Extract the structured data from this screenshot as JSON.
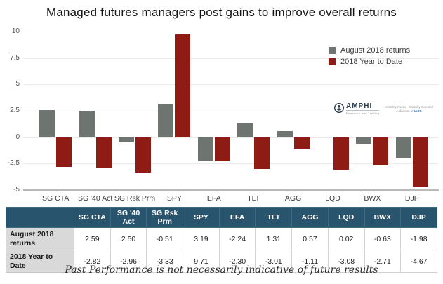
{
  "title": "Managed futures managers post gains to improve overall returns",
  "colors": {
    "august_bar": "#6e746f",
    "ytd_bar": "#8e1c14",
    "table_header_bg": "#29546e",
    "row_label_bg": "#d9d9d9",
    "gridline": "#ebebeb",
    "axis_text": "#555555",
    "logo_navy": "#2a3c4e",
    "logo_link_blue": "#2e75b6"
  },
  "legend": {
    "items": [
      {
        "label": "August 2018 returns",
        "color": "#6e746f"
      },
      {
        "label": "2018 Year to Date",
        "color": "#8e1c14"
      }
    ]
  },
  "chart_data": {
    "type": "bar",
    "title": "Managed futures managers post gains to improve overall returns",
    "categories": [
      "SG CTA",
      "SG '40 Act",
      "SG  Rsk Prm",
      "SPY",
      "EFA",
      "TLT",
      "AGG",
      "LQD",
      "BWX",
      "DJP"
    ],
    "series": [
      {
        "name": "August 2018 returns",
        "color": "#6e746f",
        "values": [
          2.59,
          2.5,
          -0.51,
          3.19,
          -2.24,
          1.31,
          0.57,
          0.02,
          -0.63,
          -1.98
        ]
      },
      {
        "name": "2018 Year to Date",
        "color": "#8e1c14",
        "values": [
          -2.82,
          -2.96,
          -3.33,
          9.71,
          -2.3,
          -3.01,
          -1.11,
          -3.08,
          -2.71,
          -4.67
        ]
      }
    ],
    "xlabel": "",
    "ylabel": "",
    "ylim": [
      -5,
      10
    ],
    "yticks": [
      10,
      7.5,
      5,
      2.5,
      0,
      -2.5,
      -5
    ],
    "grid": true,
    "legend_position": "top-right"
  },
  "logo": {
    "name": "AMPHI",
    "subtitle": "Research and Trading",
    "tagline_line1": "Volatility Focus - Globally Invested",
    "tagline_line2_prefix": "A division of ",
    "tagline_line2_link": "IASG"
  },
  "table": {
    "headers": [
      "",
      "SG CTA",
      "SG '40 Act",
      "SG  Rsk Prm",
      "SPY",
      "EFA",
      "TLT",
      "AGG",
      "LQD",
      "BWX",
      "DJP"
    ],
    "rows": [
      {
        "label": "August 2018 returns",
        "values": [
          "2.59",
          "2.50",
          "-0.51",
          "3.19",
          "-2.24",
          "1.31",
          "0.57",
          "0.02",
          "-0.63",
          "-1.98"
        ]
      },
      {
        "label": "2018 Year to Date",
        "values": [
          "-2.82",
          "-2.96",
          "-3.33",
          "9.71",
          "-2.30",
          "-3.01",
          "-1.11",
          "-3.08",
          "-2.71",
          "-4.67"
        ]
      }
    ]
  },
  "footer": "Past Performance is not necessarily indicative of future results"
}
